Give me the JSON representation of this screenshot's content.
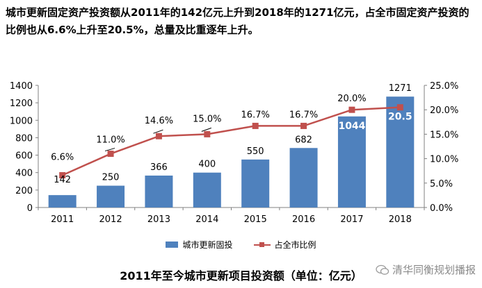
{
  "headline": "城市更新固定资产投资额从2011年的142亿元上升到2018年的1271亿元，占全市固定资产投资的比例也从6.6%上升至20.5%，总量及比重逐年上升。",
  "caption": "2011年至今城市更新项目投资额（单位：亿元）",
  "watermark": "清华同衡规划播报",
  "colors": {
    "bar": "#4F81BD",
    "line": "#C0504D",
    "bar_label_inside": "#ffffff"
  },
  "chart_data": {
    "type": "bar+line",
    "categories": [
      "2011",
      "2012",
      "2013",
      "2014",
      "2015",
      "2016",
      "2017",
      "2018"
    ],
    "series": [
      {
        "name": "城市更新固投",
        "type": "bar",
        "axis": "left",
        "values": [
          142,
          250,
          366,
          400,
          550,
          682,
          1044,
          1271
        ],
        "labels": [
          "142",
          "250",
          "366",
          "400",
          "550",
          "682",
          "1044",
          "1271"
        ]
      },
      {
        "name": "占全市比例",
        "type": "line",
        "axis": "right",
        "values": [
          6.6,
          11.0,
          14.6,
          15.0,
          16.7,
          16.7,
          20.0,
          20.5
        ],
        "labels": [
          "6.6%",
          "11.0%",
          "14.6%",
          "15.0%",
          "16.7%",
          "16.7%",
          "20.0%",
          "20.5"
        ]
      }
    ],
    "y_left": {
      "min": 0,
      "max": 1400,
      "ticks": [
        "0",
        "200",
        "400",
        "600",
        "800",
        "1000",
        "1200",
        "1400"
      ]
    },
    "y_right": {
      "min": 0,
      "max": 25,
      "ticks": [
        "0.0%",
        "5.0%",
        "10.0%",
        "15.0%",
        "20.0%",
        "25.0%"
      ]
    },
    "grid": false,
    "legend": "bottom"
  }
}
